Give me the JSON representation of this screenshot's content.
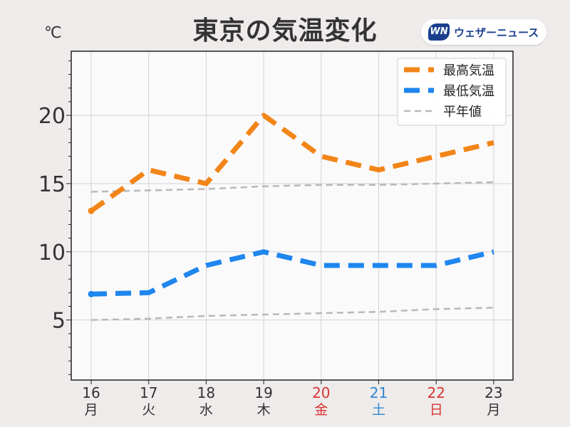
{
  "title": "東京の気温変化",
  "unit": "℃",
  "logo": {
    "mark": "WN",
    "text": "ウェザーニュース"
  },
  "colors": {
    "high": "#f28518",
    "low": "#1e86ee",
    "normal": "#b8b8b8",
    "weekday": "#333333",
    "saturday": "#2f86d2",
    "sunday": "#d83434"
  },
  "chart_data": {
    "type": "line",
    "title": "東京の気温変化",
    "ylabel": "℃",
    "ylim": [
      0.6,
      24.7
    ],
    "yticks": [
      5,
      10,
      15,
      20
    ],
    "grid": true,
    "legend_position": "top-right",
    "categories": [
      "16",
      "17",
      "18",
      "19",
      "20",
      "21",
      "22",
      "23"
    ],
    "weekdays": [
      "月",
      "火",
      "水",
      "木",
      "金",
      "土",
      "日",
      "月"
    ],
    "day_types": [
      "weekday",
      "weekday",
      "weekday",
      "weekday",
      "sunday",
      "saturday",
      "sunday",
      "weekday"
    ],
    "series": [
      {
        "name": "最高気温",
        "style": "high",
        "values": [
          13,
          16,
          15,
          20,
          17,
          16,
          17,
          18
        ]
      },
      {
        "name": "最低気温",
        "style": "low",
        "values": [
          6.9,
          7,
          9,
          10,
          9,
          9,
          9,
          10
        ]
      },
      {
        "name": "平年値",
        "style": "normal",
        "values": [
          14.4,
          14.5,
          14.6,
          14.8,
          14.9,
          14.9,
          15.0,
          15.1
        ]
      },
      {
        "style": "normal",
        "values": [
          5.0,
          5.1,
          5.3,
          5.4,
          5.5,
          5.6,
          5.8,
          5.9
        ]
      }
    ]
  }
}
